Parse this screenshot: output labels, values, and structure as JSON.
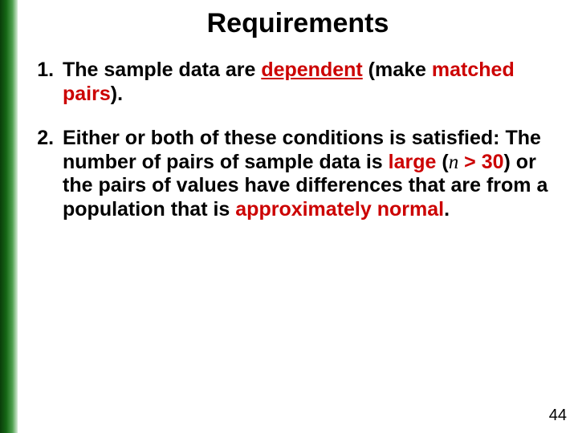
{
  "slide": {
    "title": "Requirements",
    "page_number": "44",
    "items": {
      "item1": {
        "pre": "The sample data are ",
        "dep": "dependent",
        "post1": " (make ",
        "post2": "matched pairs",
        "post3": ")."
      },
      "item2": {
        "t1": "Either or both of these conditions is satisfied:  The number of pairs of sample data is ",
        "large": "large",
        "paren_open": " (",
        "n": "n",
        "gt30": " > 30",
        "paren_close": ") ",
        "t2": "or the pairs of values have differences that are from a population that is ",
        "approx": "approximately normal",
        "end": "."
      }
    }
  },
  "style": {
    "title_fontsize": 34,
    "body_fontsize": 25,
    "highlight_color": "#cc0000",
    "text_color": "#000000",
    "background_color": "#ffffff",
    "sidebar_gradient": [
      "#0a3d0a",
      "#156615",
      "#4fa04f",
      "#d8ecd8"
    ],
    "line_height": 1.18
  }
}
